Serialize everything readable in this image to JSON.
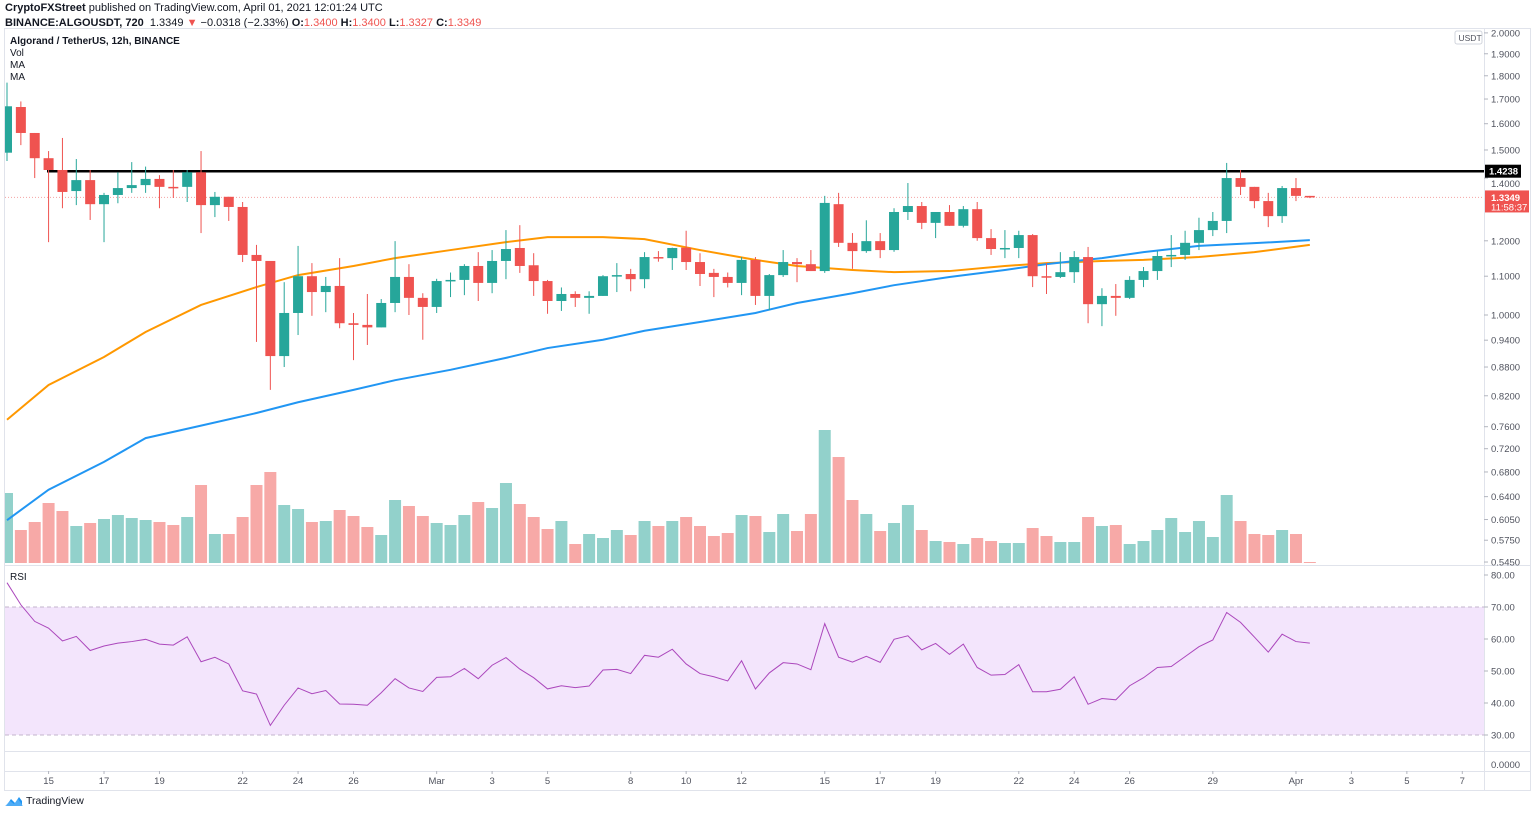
{
  "header": {
    "publisher": "CryptoFXStreet",
    "published_text": "published on TradingView.com, April 01, 2021 12:01:24 UTC",
    "symbol_line": "BINANCE:ALGOUSDT, 720",
    "last": "1.3349",
    "change": "−0.0318 (−2.33%)",
    "o_label": "O:",
    "o": "1.3400",
    "h_label": "H:",
    "h": "1.3400",
    "l_label": "L:",
    "l": "1.3327",
    "c_label": "C:",
    "c": "1.3349"
  },
  "legend": {
    "title": "Algorand / TetherUS, 12h, BINANCE",
    "vol": "Vol",
    "ma1": "MA",
    "ma2": "MA",
    "rsi": "RSI"
  },
  "price_axis": {
    "currency": "USDT",
    "ticks": [
      "2.0000",
      "1.9000",
      "1.8000",
      "1.7000",
      "1.6000",
      "1.5000",
      "1.4000",
      "1.2000",
      "1.1000",
      "1.0000",
      "0.9400",
      "0.8800",
      "0.8200",
      "0.7600",
      "0.7200",
      "0.6800",
      "0.6400",
      "0.6050",
      "0.5750",
      "0.5450"
    ],
    "resistance_label": "1.4238",
    "current_label": "1.3349",
    "countdown": "11:58:37"
  },
  "rsi_axis": {
    "ticks": [
      "80.00",
      "70.00",
      "60.00",
      "50.00",
      "40.00",
      "30.00"
    ],
    "extra_pane_tick": "0.0000"
  },
  "time_axis": {
    "ticks": [
      {
        "date": "2021-02-15",
        "label": "15"
      },
      {
        "date": "2021-02-17",
        "label": "17"
      },
      {
        "date": "2021-02-19",
        "label": "19"
      },
      {
        "date": "2021-02-22",
        "label": "22"
      },
      {
        "date": "2021-02-24",
        "label": "24"
      },
      {
        "date": "2021-02-26",
        "label": "26"
      },
      {
        "date": "2021-03-01",
        "label": "Mar"
      },
      {
        "date": "2021-03-03",
        "label": "3"
      },
      {
        "date": "2021-03-05",
        "label": "5"
      },
      {
        "date": "2021-03-08",
        "label": "8"
      },
      {
        "date": "2021-03-10",
        "label": "10"
      },
      {
        "date": "2021-03-12",
        "label": "12"
      },
      {
        "date": "2021-03-15",
        "label": "15"
      },
      {
        "date": "2021-03-17",
        "label": "17"
      },
      {
        "date": "2021-03-19",
        "label": "19"
      },
      {
        "date": "2021-03-22",
        "label": "22"
      },
      {
        "date": "2021-03-24",
        "label": "24"
      },
      {
        "date": "2021-03-26",
        "label": "26"
      },
      {
        "date": "2021-03-29",
        "label": "29"
      },
      {
        "date": "2021-04-01",
        "label": "Apr"
      },
      {
        "date": "2021-04-03",
        "label": "3"
      },
      {
        "date": "2021-04-05",
        "label": "5"
      },
      {
        "date": "2021-04-07",
        "label": "7"
      }
    ]
  },
  "footer": {
    "brand": "TradingView"
  },
  "colors": {
    "up": "#26a69a",
    "down": "#ef5350",
    "vol_up": "#92d1cb",
    "vol_down": "#f7a9a7",
    "ma_fast": "#ff9800",
    "ma_slow": "#2196f3",
    "rsi": "#ab47bc",
    "rsi_band": "#f3e5fc",
    "resistance": "#000000"
  },
  "chart_data": {
    "type": "candlestick",
    "scale": "log",
    "start": "2021-02-13T12:00:00Z",
    "interval_hours": 12,
    "ylim": [
      0.545,
      2.0
    ],
    "resistance": 1.4238,
    "current_price": 1.3349,
    "ohlc": [
      [
        1.49,
        1.77,
        1.46,
        1.67
      ],
      [
        1.667,
        1.69,
        1.518,
        1.564
      ],
      [
        1.564,
        1.564,
        1.4,
        1.47
      ],
      [
        1.47,
        1.496,
        1.196,
        1.428
      ],
      [
        1.428,
        1.545,
        1.3,
        1.353
      ],
      [
        1.356,
        1.467,
        1.31,
        1.393
      ],
      [
        1.393,
        1.428,
        1.263,
        1.313
      ],
      [
        1.313,
        1.35,
        1.196,
        1.343
      ],
      [
        1.343,
        1.42,
        1.316,
        1.366
      ],
      [
        1.366,
        1.456,
        1.35,
        1.376
      ],
      [
        1.376,
        1.44,
        1.35,
        1.397
      ],
      [
        1.397,
        1.41,
        1.3,
        1.37
      ],
      [
        1.37,
        1.428,
        1.333,
        1.366
      ],
      [
        1.37,
        1.428,
        1.32,
        1.42
      ],
      [
        1.42,
        1.496,
        1.223,
        1.31
      ],
      [
        1.31,
        1.353,
        1.272,
        1.337
      ],
      [
        1.337,
        1.337,
        1.26,
        1.304
      ],
      [
        1.304,
        1.32,
        1.139,
        1.159
      ],
      [
        1.159,
        1.188,
        0.936,
        1.142
      ],
      [
        1.142,
        1.142,
        0.832,
        0.904
      ],
      [
        0.904,
        1.084,
        0.88,
        1.005
      ],
      [
        1.005,
        1.185,
        0.952,
        1.1
      ],
      [
        1.1,
        1.136,
        0.998,
        1.058
      ],
      [
        1.058,
        1.098,
        1.007,
        1.074
      ],
      [
        1.074,
        1.15,
        0.968,
        0.98
      ],
      [
        0.98,
        1.005,
        0.895,
        0.976
      ],
      [
        0.976,
        1.053,
        0.929,
        0.97
      ],
      [
        0.97,
        1.04,
        0.97,
        1.03
      ],
      [
        1.03,
        1.199,
        1.007,
        1.098
      ],
      [
        1.098,
        1.133,
        1.0,
        1.043
      ],
      [
        1.043,
        1.055,
        0.941,
        1.02
      ],
      [
        1.02,
        1.093,
        1.005,
        1.087
      ],
      [
        1.087,
        1.11,
        1.045,
        1.09
      ],
      [
        1.09,
        1.133,
        1.05,
        1.128
      ],
      [
        1.128,
        1.167,
        1.035,
        1.082
      ],
      [
        1.082,
        1.173,
        1.055,
        1.142
      ],
      [
        1.142,
        1.232,
        1.092,
        1.176
      ],
      [
        1.179,
        1.247,
        1.109,
        1.128
      ],
      [
        1.13,
        1.164,
        1.048,
        1.087
      ],
      [
        1.087,
        1.09,
        1.003,
        1.035
      ],
      [
        1.035,
        1.07,
        1.01,
        1.053
      ],
      [
        1.053,
        1.06,
        1.02,
        1.043
      ],
      [
        1.043,
        1.06,
        1.003,
        1.048
      ],
      [
        1.048,
        1.103,
        1.048,
        1.1
      ],
      [
        1.1,
        1.136,
        1.058,
        1.103
      ],
      [
        1.106,
        1.12,
        1.06,
        1.092
      ],
      [
        1.092,
        1.167,
        1.068,
        1.153
      ],
      [
        1.153,
        1.17,
        1.14,
        1.15
      ],
      [
        1.15,
        1.18,
        1.117,
        1.179
      ],
      [
        1.18,
        1.23,
        1.117,
        1.139
      ],
      [
        1.139,
        1.164,
        1.074,
        1.106
      ],
      [
        1.109,
        1.12,
        1.045,
        1.098
      ],
      [
        1.098,
        1.11,
        1.07,
        1.082
      ],
      [
        1.082,
        1.153,
        1.05,
        1.145
      ],
      [
        1.145,
        1.153,
        1.025,
        1.048
      ],
      [
        1.048,
        1.106,
        1.012,
        1.103
      ],
      [
        1.103,
        1.173,
        1.098,
        1.139
      ],
      [
        1.139,
        1.15,
        1.084,
        1.133
      ],
      [
        1.133,
        1.173,
        1.114,
        1.114
      ],
      [
        1.114,
        1.34,
        1.109,
        1.317
      ],
      [
        1.313,
        1.35,
        1.182,
        1.194
      ],
      [
        1.194,
        1.223,
        1.12,
        1.17
      ],
      [
        1.17,
        1.262,
        1.165,
        1.199
      ],
      [
        1.199,
        1.223,
        1.15,
        1.173
      ],
      [
        1.173,
        1.3,
        1.168,
        1.288
      ],
      [
        1.288,
        1.383,
        1.263,
        1.307
      ],
      [
        1.307,
        1.32,
        1.235,
        1.254
      ],
      [
        1.254,
        1.288,
        1.208,
        1.288
      ],
      [
        1.288,
        1.31,
        1.245,
        1.245
      ],
      [
        1.245,
        1.307,
        1.24,
        1.297
      ],
      [
        1.297,
        1.32,
        1.2,
        1.208
      ],
      [
        1.208,
        1.235,
        1.159,
        1.176
      ],
      [
        1.176,
        1.232,
        1.15,
        1.179
      ],
      [
        1.179,
        1.23,
        1.15,
        1.217
      ],
      [
        1.217,
        1.22,
        1.071,
        1.1
      ],
      [
        1.1,
        1.136,
        1.053,
        1.098
      ],
      [
        1.098,
        1.167,
        1.095,
        1.111
      ],
      [
        1.111,
        1.17,
        1.082,
        1.153
      ],
      [
        1.153,
        1.182,
        0.98,
        1.027
      ],
      [
        1.027,
        1.068,
        0.973,
        1.048
      ],
      [
        1.048,
        1.079,
        0.998,
        1.043
      ],
      [
        1.043,
        1.1,
        1.04,
        1.09
      ],
      [
        1.09,
        1.125,
        1.071,
        1.114
      ],
      [
        1.114,
        1.17,
        1.09,
        1.156
      ],
      [
        1.156,
        1.217,
        1.125,
        1.159
      ],
      [
        1.159,
        1.23,
        1.145,
        1.194
      ],
      [
        1.194,
        1.27,
        1.173,
        1.232
      ],
      [
        1.232,
        1.288,
        1.214,
        1.26
      ],
      [
        1.26,
        1.453,
        1.223,
        1.4
      ],
      [
        1.4,
        1.428,
        1.343,
        1.37
      ],
      [
        1.37,
        1.37,
        1.3,
        1.323
      ],
      [
        1.323,
        1.35,
        1.241,
        1.275
      ],
      [
        1.275,
        1.373,
        1.254,
        1.366
      ],
      [
        1.366,
        1.4,
        1.323,
        1.34
      ],
      [
        1.34,
        1.34,
        1.3327,
        1.3349
      ]
    ],
    "volume": [
      70,
      33,
      41,
      60,
      52,
      37,
      40,
      44,
      48,
      45,
      43,
      41,
      38,
      46,
      78,
      29,
      29,
      46,
      78,
      91,
      58,
      54,
      41,
      42,
      53,
      47,
      36,
      28,
      63,
      57,
      47,
      40,
      38,
      48,
      61,
      55,
      80,
      59,
      46,
      34,
      42,
      19,
      29,
      25,
      33,
      28,
      42,
      37,
      42,
      46,
      37,
      27,
      30,
      48,
      47,
      31,
      49,
      32,
      49,
      133,
      106,
      63,
      49,
      32,
      40,
      58,
      33,
      22,
      21,
      19,
      25,
      22,
      20,
      20,
      35,
      27,
      21,
      21,
      46,
      37,
      38,
      19,
      22,
      33,
      45,
      31,
      42,
      26,
      68,
      42,
      29,
      28,
      33,
      29,
      1
    ],
    "rsi": [
      77.6,
      70.7,
      65.5,
      63.4,
      59.4,
      60.8,
      56.4,
      57.8,
      58.7,
      59.2,
      59.9,
      58.4,
      58.1,
      60.7,
      52.9,
      54.3,
      52.2,
      43.8,
      42.8,
      33.0,
      39.3,
      44.7,
      42.9,
      43.9,
      39.7,
      39.6,
      39.3,
      43.2,
      47.6,
      44.7,
      43.6,
      48.0,
      48.2,
      50.8,
      47.6,
      51.8,
      54.2,
      50.6,
      47.9,
      44.4,
      45.4,
      44.8,
      45.3,
      50.3,
      50.5,
      49.2,
      54.9,
      54.3,
      56.8,
      52.2,
      49.2,
      48.2,
      46.9,
      53.2,
      44.4,
      49.4,
      52.6,
      52.2,
      50.4,
      64.8,
      54.3,
      52.8,
      54.6,
      52.7,
      59.9,
      61.0,
      56.6,
      58.6,
      55.2,
      58.4,
      51.1,
      48.7,
      48.9,
      52.0,
      43.5,
      43.5,
      44.3,
      48.2,
      39.6,
      41.4,
      41.0,
      45.4,
      47.9,
      51.1,
      51.4,
      54.5,
      57.6,
      59.7,
      68.3,
      65.2,
      60.6,
      55.9,
      61.5,
      59.2,
      58.7
    ],
    "rsi_bands": [
      30,
      70
    ],
    "rsi_ylim": [
      0,
      80
    ],
    "ma_fast": [
      [
        "2021-02-13T12:00Z",
        0.773
      ],
      [
        "2021-02-15T00:00Z",
        0.842
      ],
      [
        "2021-02-17T00:00Z",
        0.902
      ],
      [
        "2021-02-18T12:00Z",
        0.959
      ],
      [
        "2021-02-20T12:00Z",
        1.025
      ],
      [
        "2021-02-22T12:00Z",
        1.071
      ],
      [
        "2021-02-24T00:00Z",
        1.103
      ],
      [
        "2021-02-26T00:00Z",
        1.128
      ],
      [
        "2021-02-27T12:00Z",
        1.15
      ],
      [
        "2021-03-01T12:00Z",
        1.173
      ],
      [
        "2021-03-03T12:00Z",
        1.196
      ],
      [
        "2021-03-05T00:00Z",
        1.211
      ],
      [
        "2021-03-07T00:00Z",
        1.211
      ],
      [
        "2021-03-08T12:00Z",
        1.205
      ],
      [
        "2021-03-10T12:00Z",
        1.173
      ],
      [
        "2021-03-12T12:00Z",
        1.145
      ],
      [
        "2021-03-14T00:00Z",
        1.128
      ],
      [
        "2021-03-16T00:00Z",
        1.117
      ],
      [
        "2021-03-17T12:00Z",
        1.111
      ],
      [
        "2021-03-19T12:00Z",
        1.114
      ],
      [
        "2021-03-21T12:00Z",
        1.128
      ],
      [
        "2021-03-23T00:00Z",
        1.136
      ],
      [
        "2021-03-25T00:00Z",
        1.142
      ],
      [
        "2021-03-26T12:00Z",
        1.145
      ],
      [
        "2021-03-28T12:00Z",
        1.153
      ],
      [
        "2021-03-30T12:00Z",
        1.167
      ],
      [
        "2021-04-01T12:00Z",
        1.188
      ]
    ],
    "ma_slow": [
      [
        "2021-02-13T12:00Z",
        0.604
      ],
      [
        "2021-02-15T00:00Z",
        0.651
      ],
      [
        "2021-02-17T00:00Z",
        0.697
      ],
      [
        "2021-02-18T12:00Z",
        0.739
      ],
      [
        "2021-02-20T12:00Z",
        0.762
      ],
      [
        "2021-02-22T12:00Z",
        0.786
      ],
      [
        "2021-02-24T00:00Z",
        0.807
      ],
      [
        "2021-02-26T00:00Z",
        0.832
      ],
      [
        "2021-02-27T12:00Z",
        0.852
      ],
      [
        "2021-03-01T12:00Z",
        0.874
      ],
      [
        "2021-03-03T12:00Z",
        0.9
      ],
      [
        "2021-03-05T00:00Z",
        0.922
      ],
      [
        "2021-03-07T00:00Z",
        0.941
      ],
      [
        "2021-03-08T12:00Z",
        0.962
      ],
      [
        "2021-03-10T12:00Z",
        0.983
      ],
      [
        "2021-03-12T12:00Z",
        1.005
      ],
      [
        "2021-03-14T00:00Z",
        1.03
      ],
      [
        "2021-03-16T00:00Z",
        1.055
      ],
      [
        "2021-03-17T12:00Z",
        1.076
      ],
      [
        "2021-03-19T12:00Z",
        1.098
      ],
      [
        "2021-03-21T12:00Z",
        1.117
      ],
      [
        "2021-03-23T00:00Z",
        1.133
      ],
      [
        "2021-03-25T00:00Z",
        1.15
      ],
      [
        "2021-03-26T12:00Z",
        1.167
      ],
      [
        "2021-03-28T12:00Z",
        1.185
      ],
      [
        "2021-03-30T12:00Z",
        1.193
      ],
      [
        "2021-04-01T12:00Z",
        1.202
      ]
    ]
  }
}
